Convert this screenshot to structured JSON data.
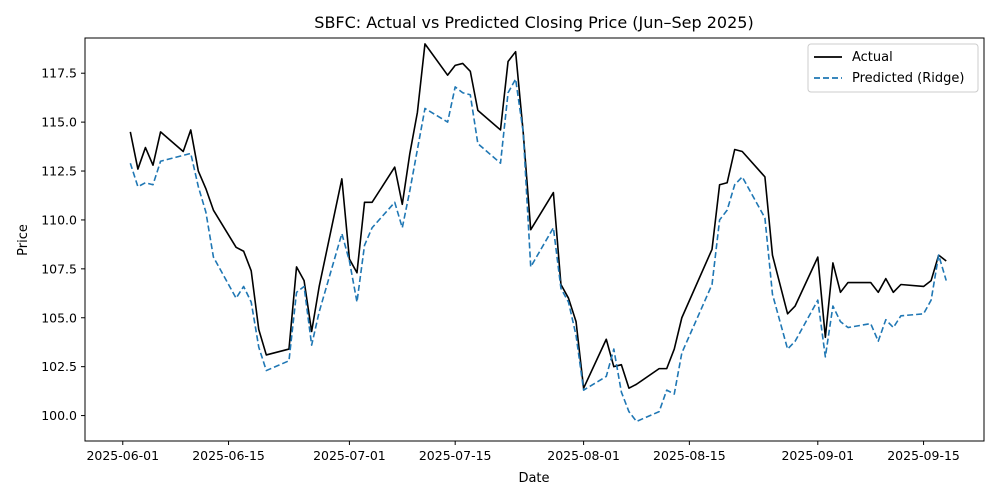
{
  "chart_data": {
    "type": "line",
    "title": "SBFC: Actual vs Predicted Closing Price (Jun–Sep 2025)",
    "xlabel": "Date",
    "ylabel": "Price",
    "xlim": [
      "2025-05-27",
      "2025-09-23"
    ],
    "ylim": [
      98.7,
      119.3
    ],
    "x_ticks": [
      "2025-06-01",
      "2025-06-15",
      "2025-07-01",
      "2025-07-15",
      "2025-08-01",
      "2025-08-15",
      "2025-09-01",
      "2025-09-15"
    ],
    "y_ticks": [
      100.0,
      102.5,
      105.0,
      107.5,
      110.0,
      112.5,
      115.0,
      117.5
    ],
    "y_tick_labels": [
      "100.0",
      "102.5",
      "105.0",
      "107.5",
      "110.0",
      "112.5",
      "115.0",
      "117.5"
    ],
    "grid": false,
    "legend_position": "top-right",
    "x": [
      "2025-06-02",
      "2025-06-03",
      "2025-06-04",
      "2025-06-05",
      "2025-06-06",
      "2025-06-09",
      "2025-06-10",
      "2025-06-11",
      "2025-06-12",
      "2025-06-13",
      "2025-06-16",
      "2025-06-17",
      "2025-06-18",
      "2025-06-19",
      "2025-06-20",
      "2025-06-23",
      "2025-06-24",
      "2025-06-25",
      "2025-06-26",
      "2025-06-27",
      "2025-06-30",
      "2025-07-01",
      "2025-07-02",
      "2025-07-03",
      "2025-07-04",
      "2025-07-07",
      "2025-07-08",
      "2025-07-09",
      "2025-07-10",
      "2025-07-11",
      "2025-07-14",
      "2025-07-15",
      "2025-07-16",
      "2025-07-17",
      "2025-07-18",
      "2025-07-21",
      "2025-07-22",
      "2025-07-23",
      "2025-07-24",
      "2025-07-25",
      "2025-07-28",
      "2025-07-29",
      "2025-07-30",
      "2025-07-31",
      "2025-08-01",
      "2025-08-04",
      "2025-08-05",
      "2025-08-06",
      "2025-08-07",
      "2025-08-08",
      "2025-08-11",
      "2025-08-12",
      "2025-08-13",
      "2025-08-14",
      "2025-08-18",
      "2025-08-19",
      "2025-08-20",
      "2025-08-21",
      "2025-08-22",
      "2025-08-25",
      "2025-08-26",
      "2025-08-28",
      "2025-08-29",
      "2025-09-01",
      "2025-09-02",
      "2025-09-03",
      "2025-09-04",
      "2025-09-05",
      "2025-09-08",
      "2025-09-09",
      "2025-09-10",
      "2025-09-11",
      "2025-09-12",
      "2025-09-15",
      "2025-09-16",
      "2025-09-17",
      "2025-09-18"
    ],
    "series": [
      {
        "name": "Actual",
        "color": "#000000",
        "style": "solid",
        "values": [
          114.5,
          112.6,
          113.7,
          112.8,
          114.5,
          113.5,
          114.6,
          112.5,
          111.6,
          110.5,
          108.6,
          108.4,
          107.4,
          104.4,
          103.1,
          103.4,
          107.6,
          106.9,
          104.3,
          106.6,
          112.1,
          108.0,
          107.3,
          110.9,
          110.9,
          112.7,
          110.8,
          113.4,
          115.5,
          119.0,
          117.4,
          117.9,
          118.0,
          117.6,
          115.6,
          114.6,
          118.1,
          118.6,
          114.5,
          109.5,
          111.4,
          106.7,
          106.0,
          104.8,
          101.4,
          103.9,
          102.5,
          102.6,
          101.4,
          101.6,
          102.4,
          102.4,
          103.4,
          105.0,
          108.5,
          111.8,
          111.9,
          113.6,
          113.5,
          112.2,
          108.2,
          105.2,
          105.6,
          108.1,
          104.0,
          107.8,
          106.3,
          106.8,
          106.8,
          106.3,
          107.0,
          106.3,
          106.7,
          106.6,
          106.9,
          108.2,
          107.9
        ]
      },
      {
        "name": "Predicted (Ridge)",
        "color": "#1f77b4",
        "style": "dashed",
        "values": [
          112.9,
          111.7,
          111.9,
          111.8,
          113.0,
          113.3,
          113.4,
          111.7,
          110.4,
          108.1,
          106.0,
          106.6,
          105.8,
          103.5,
          102.3,
          102.8,
          106.3,
          106.6,
          103.6,
          105.3,
          109.3,
          107.9,
          105.8,
          108.7,
          109.6,
          110.9,
          109.6,
          111.5,
          113.6,
          115.7,
          115.0,
          116.8,
          116.5,
          116.4,
          113.9,
          112.9,
          116.5,
          117.2,
          114.5,
          107.6,
          109.6,
          106.5,
          105.8,
          104.1,
          101.3,
          102.0,
          103.4,
          101.2,
          100.2,
          99.7,
          100.2,
          101.3,
          101.1,
          103.2,
          106.7,
          110.0,
          110.5,
          111.8,
          112.2,
          110.1,
          106.2,
          103.4,
          103.8,
          105.9,
          103.0,
          105.6,
          104.8,
          104.5,
          104.7,
          103.8,
          104.9,
          104.5,
          105.1,
          105.2,
          105.9,
          108.2,
          106.9
        ]
      }
    ]
  }
}
